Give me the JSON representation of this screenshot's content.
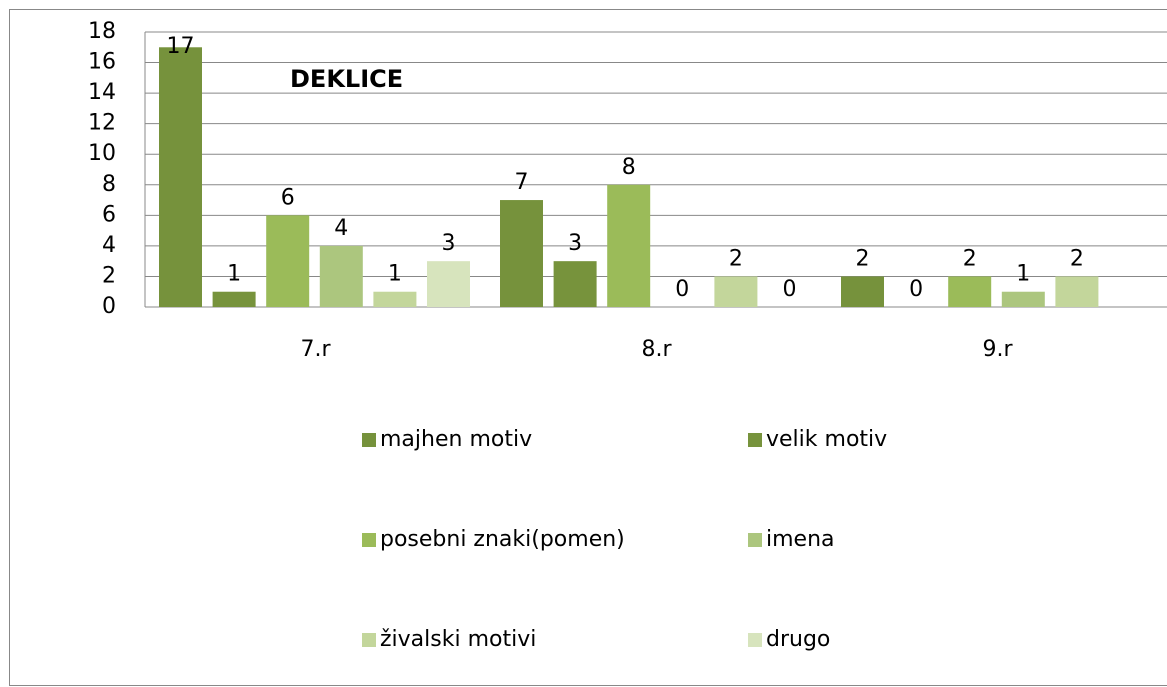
{
  "chart_data": {
    "type": "bar",
    "title": "DEKLICE",
    "categories": [
      "7.r",
      "8.r",
      "9.r"
    ],
    "series": [
      {
        "name": "majhen motiv",
        "color": "#76923c",
        "values": [
          17,
          7,
          2
        ]
      },
      {
        "name": "velik motiv",
        "color": "#77933c",
        "values": [
          1,
          3,
          0
        ]
      },
      {
        "name": "posebni znaki(pomen)",
        "color": "#9bbb59",
        "values": [
          6,
          8,
          2
        ]
      },
      {
        "name": "imena",
        "color": "#acc67e",
        "values": [
          4,
          0,
          1
        ]
      },
      {
        "name": "živalski motivi",
        "color": "#c3d69b",
        "values": [
          1,
          2,
          2
        ]
      },
      {
        "name": "drugo",
        "color": "#d7e4bd",
        "values": [
          3,
          0,
          null
        ]
      }
    ],
    "ylim": [
      0,
      18
    ],
    "yticks": [
      0,
      2,
      4,
      6,
      8,
      10,
      12,
      14,
      16,
      18
    ],
    "grid": true,
    "legend": "bottom"
  }
}
